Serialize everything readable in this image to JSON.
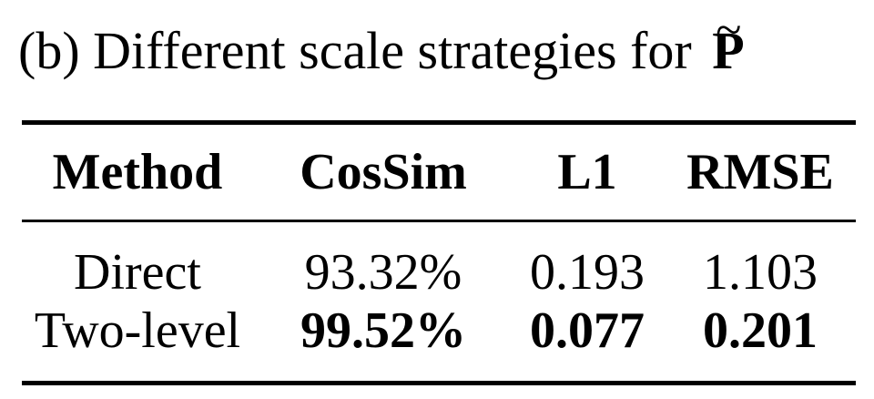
{
  "caption": {
    "prefix": "(b) Different scale strategies for",
    "symbol": "P",
    "symbol_accent": "~"
  },
  "table": {
    "headers": [
      "Method",
      "CosSim",
      "L1",
      "RMSE"
    ],
    "rows": [
      {
        "method": "Direct",
        "cossim": "93.32%",
        "l1": "0.193",
        "rmse": "1.103",
        "bold": false
      },
      {
        "method": "Two-level",
        "cossim": "99.52%",
        "l1": "0.077",
        "rmse": "0.201",
        "bold": true
      }
    ]
  }
}
